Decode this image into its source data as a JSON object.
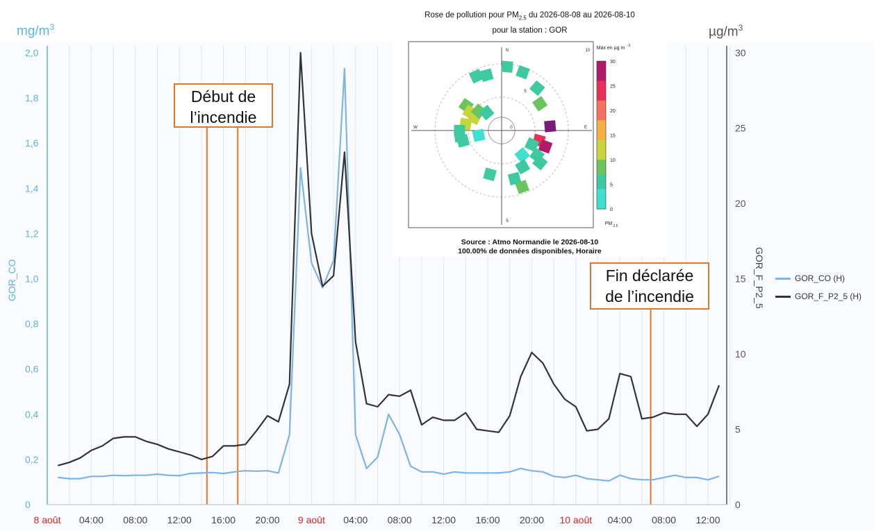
{
  "units": {
    "left_base": "mg/m",
    "left_exp": "3",
    "right_base": "µg/m",
    "right_exp": "3"
  },
  "annotations": {
    "start_line1": "Début de",
    "start_line2": "l’incendie",
    "end_line1": "Fin déclarée",
    "end_line2": "de l’incendie"
  },
  "colors": {
    "co": "#7cb4e8",
    "pm": "#333333",
    "event": "#e0772d",
    "date_label": "#e02020",
    "left_axis": "#5cb3e0"
  },
  "chart_data": {
    "type": "line",
    "x_tick_labels": [
      "8 août",
      "04:00",
      "08:00",
      "12:00",
      "16:00",
      "20:00",
      "9 août",
      "04:00",
      "08:00",
      "12:00",
      "16:00",
      "20:00",
      "10 août",
      "04:00",
      "08:00",
      "12:00"
    ],
    "x_tick_hours": [
      0,
      4,
      8,
      12,
      16,
      20,
      24,
      28,
      32,
      36,
      40,
      44,
      48,
      52,
      56,
      60
    ],
    "date_ticks": [
      0,
      6,
      12
    ],
    "xlim": [
      0,
      62.5
    ],
    "ylabel_left": "GOR_CO",
    "ylim_left": [
      0,
      2.0
    ],
    "yticks_left": [
      "0",
      "0,2",
      "0,4",
      "0,6",
      "0,8",
      "1,0",
      "1,2",
      "1,4",
      "1,6",
      "1,8",
      "2,0"
    ],
    "ylabel_right": "GOR_F_P2_5",
    "ylim_right": [
      0,
      30
    ],
    "yticks_right": [
      "0",
      "5",
      "10",
      "15",
      "20",
      "25",
      "30"
    ],
    "event_hours": [
      14.5,
      17.3,
      54.8
    ],
    "series": [
      {
        "name": "GOR_CO (H)",
        "axis": "left",
        "x": [
          1,
          2,
          3,
          4,
          5,
          6,
          7,
          8,
          9,
          10,
          11,
          12,
          13,
          14,
          15,
          16,
          17,
          18,
          19,
          20,
          21,
          22,
          23,
          24,
          25,
          26,
          27,
          28,
          29,
          30,
          31,
          32,
          33,
          34,
          35,
          36,
          37,
          38,
          39,
          40,
          41,
          42,
          43,
          44,
          45,
          46,
          47,
          48,
          49,
          50,
          51,
          52,
          53,
          54,
          55,
          56,
          57,
          58,
          59,
          60,
          61
        ],
        "values": [
          0.12,
          0.115,
          0.115,
          0.125,
          0.125,
          0.13,
          0.128,
          0.13,
          0.13,
          0.135,
          0.13,
          0.128,
          0.138,
          0.14,
          0.142,
          0.138,
          0.145,
          0.15,
          0.148,
          0.15,
          0.14,
          0.31,
          1.49,
          1.07,
          0.96,
          1.08,
          1.93,
          0.31,
          0.16,
          0.21,
          0.4,
          0.31,
          0.17,
          0.145,
          0.145,
          0.135,
          0.145,
          0.14,
          0.14,
          0.14,
          0.14,
          0.145,
          0.16,
          0.15,
          0.145,
          0.125,
          0.12,
          0.13,
          0.115,
          0.11,
          0.105,
          0.13,
          0.115,
          0.11,
          0.11,
          0.12,
          0.13,
          0.12,
          0.12,
          0.11,
          0.125
        ]
      },
      {
        "name": "GOR_F_P2_5 (H)",
        "axis": "right",
        "x": [
          1,
          2,
          3,
          4,
          5,
          6,
          7,
          8,
          9,
          10,
          11,
          12,
          13,
          14,
          15,
          16,
          17,
          18,
          19,
          20,
          21,
          22,
          23,
          24,
          25,
          26,
          27,
          28,
          29,
          30,
          31,
          32,
          33,
          34,
          35,
          36,
          37,
          38,
          39,
          40,
          41,
          42,
          43,
          44,
          45,
          46,
          47,
          48,
          49,
          50,
          51,
          52,
          53,
          54,
          55,
          56,
          57,
          58,
          59,
          60,
          61
        ],
        "values": [
          2.6,
          2.8,
          3.1,
          3.6,
          3.9,
          4.4,
          4.5,
          4.5,
          4.2,
          4.0,
          3.7,
          3.5,
          3.3,
          3.0,
          3.2,
          3.9,
          3.9,
          4.0,
          4.9,
          5.9,
          5.5,
          8.0,
          30.0,
          18.0,
          14.5,
          15.2,
          23.4,
          10.8,
          6.7,
          6.5,
          7.3,
          7.2,
          7.6,
          5.3,
          5.8,
          5.6,
          5.6,
          6.1,
          5.0,
          4.9,
          4.8,
          5.9,
          8.5,
          10.1,
          9.4,
          8.0,
          7.0,
          6.5,
          4.9,
          5.0,
          5.7,
          8.7,
          8.5,
          5.7,
          5.8,
          6.1,
          6.0,
          6.0,
          5.2,
          6.0,
          7.9
        ]
      }
    ]
  },
  "rose": {
    "title_a": "Rose de pollution pour PM",
    "title_sub": "2.5",
    "title_b": " du 2026-08-08 au 2026-08-10",
    "title_line2": "pour la station : GOR",
    "n_label": "N",
    "s_label": "S",
    "e_label": "E",
    "w_label": "W",
    "center_label": "0",
    "ring_label_5": "5",
    "ring_label_10": "10",
    "colorbar_title": "Max en µg m",
    "colorbar_title_exp": "-3",
    "colorbar_ticks": [
      "30",
      "25",
      "20",
      "15",
      "10",
      "5",
      "0"
    ],
    "colorbar_tick_values": [
      30,
      25,
      20,
      15,
      10,
      5,
      0
    ],
    "colorbar_foot": "PM",
    "colorbar_foot_sub": "2.5",
    "source_line1": "Source : Atmo Normandie le 2026-08-10",
    "source_line2": "100.00% de données disponibles, Horaire",
    "cells": [
      {
        "dir": 5,
        "r": 9.6,
        "v": 6
      },
      {
        "dir": 20,
        "r": 9.3,
        "v": 4
      },
      {
        "dir": 345,
        "r": 8.6,
        "v": 5
      },
      {
        "dir": 335,
        "r": 9.0,
        "v": 4
      },
      {
        "dir": 40,
        "r": 8.3,
        "v": 5
      },
      {
        "dir": 55,
        "r": 7.0,
        "v": 8
      },
      {
        "dir": 305,
        "r": 6.5,
        "v": 8
      },
      {
        "dir": 300,
        "r": 5.5,
        "v": 10
      },
      {
        "dir": 295,
        "r": 4.5,
        "v": 12
      },
      {
        "dir": 310,
        "r": 4.5,
        "v": 9
      },
      {
        "dir": 320,
        "r": 3.5,
        "v": 6
      },
      {
        "dir": 280,
        "r": 5.5,
        "v": 11
      },
      {
        "dir": 270,
        "r": 6.3,
        "v": 5
      },
      {
        "dir": 262,
        "r": 6.3,
        "v": 5
      },
      {
        "dir": 255,
        "r": 6.0,
        "v": 6
      },
      {
        "dir": 258,
        "r": 3.5,
        "v": 1
      },
      {
        "dir": 85,
        "r": 7.3,
        "v": 30
      },
      {
        "dir": 105,
        "r": 5.8,
        "v": 25
      },
      {
        "dir": 110,
        "r": 7.0,
        "v": 28
      },
      {
        "dir": 115,
        "r": 5.0,
        "v": 4
      },
      {
        "dir": 125,
        "r": 6.5,
        "v": 4
      },
      {
        "dir": 130,
        "r": 7.5,
        "v": 6
      },
      {
        "dir": 140,
        "r": 4.8,
        "v": 3
      },
      {
        "dir": 150,
        "r": 6.3,
        "v": 5
      },
      {
        "dir": 165,
        "r": 7.5,
        "v": 4
      },
      {
        "dir": 195,
        "r": 6.8,
        "v": 4
      },
      {
        "dir": 160,
        "r": 9.0,
        "v": 8
      }
    ]
  },
  "legend": {
    "co": "GOR_CO (H)",
    "pm": "GOR_F_P2_5 (H)"
  }
}
